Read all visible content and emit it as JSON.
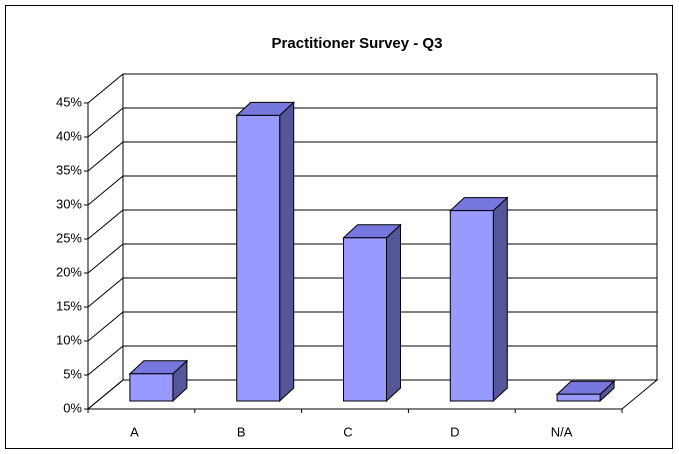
{
  "chart_data": {
    "type": "bar",
    "title": "Practitioner Survey - Q3",
    "categories": [
      "A",
      "B",
      "C",
      "D",
      "N/A"
    ],
    "values": [
      4,
      42,
      24,
      28,
      1
    ],
    "color": "#9999ff",
    "ylim": [
      0,
      45
    ],
    "yticks": [
      {
        "value": 0,
        "label": "0%"
      },
      {
        "value": 5,
        "label": "5%"
      },
      {
        "value": 10,
        "label": "10%"
      },
      {
        "value": 15,
        "label": "15%"
      },
      {
        "value": 20,
        "label": "20%"
      },
      {
        "value": 25,
        "label": "25%"
      },
      {
        "value": 30,
        "label": "30%"
      },
      {
        "value": 35,
        "label": "35%"
      },
      {
        "value": 40,
        "label": "40%"
      },
      {
        "value": 45,
        "label": "45%"
      }
    ],
    "grid": true
  }
}
